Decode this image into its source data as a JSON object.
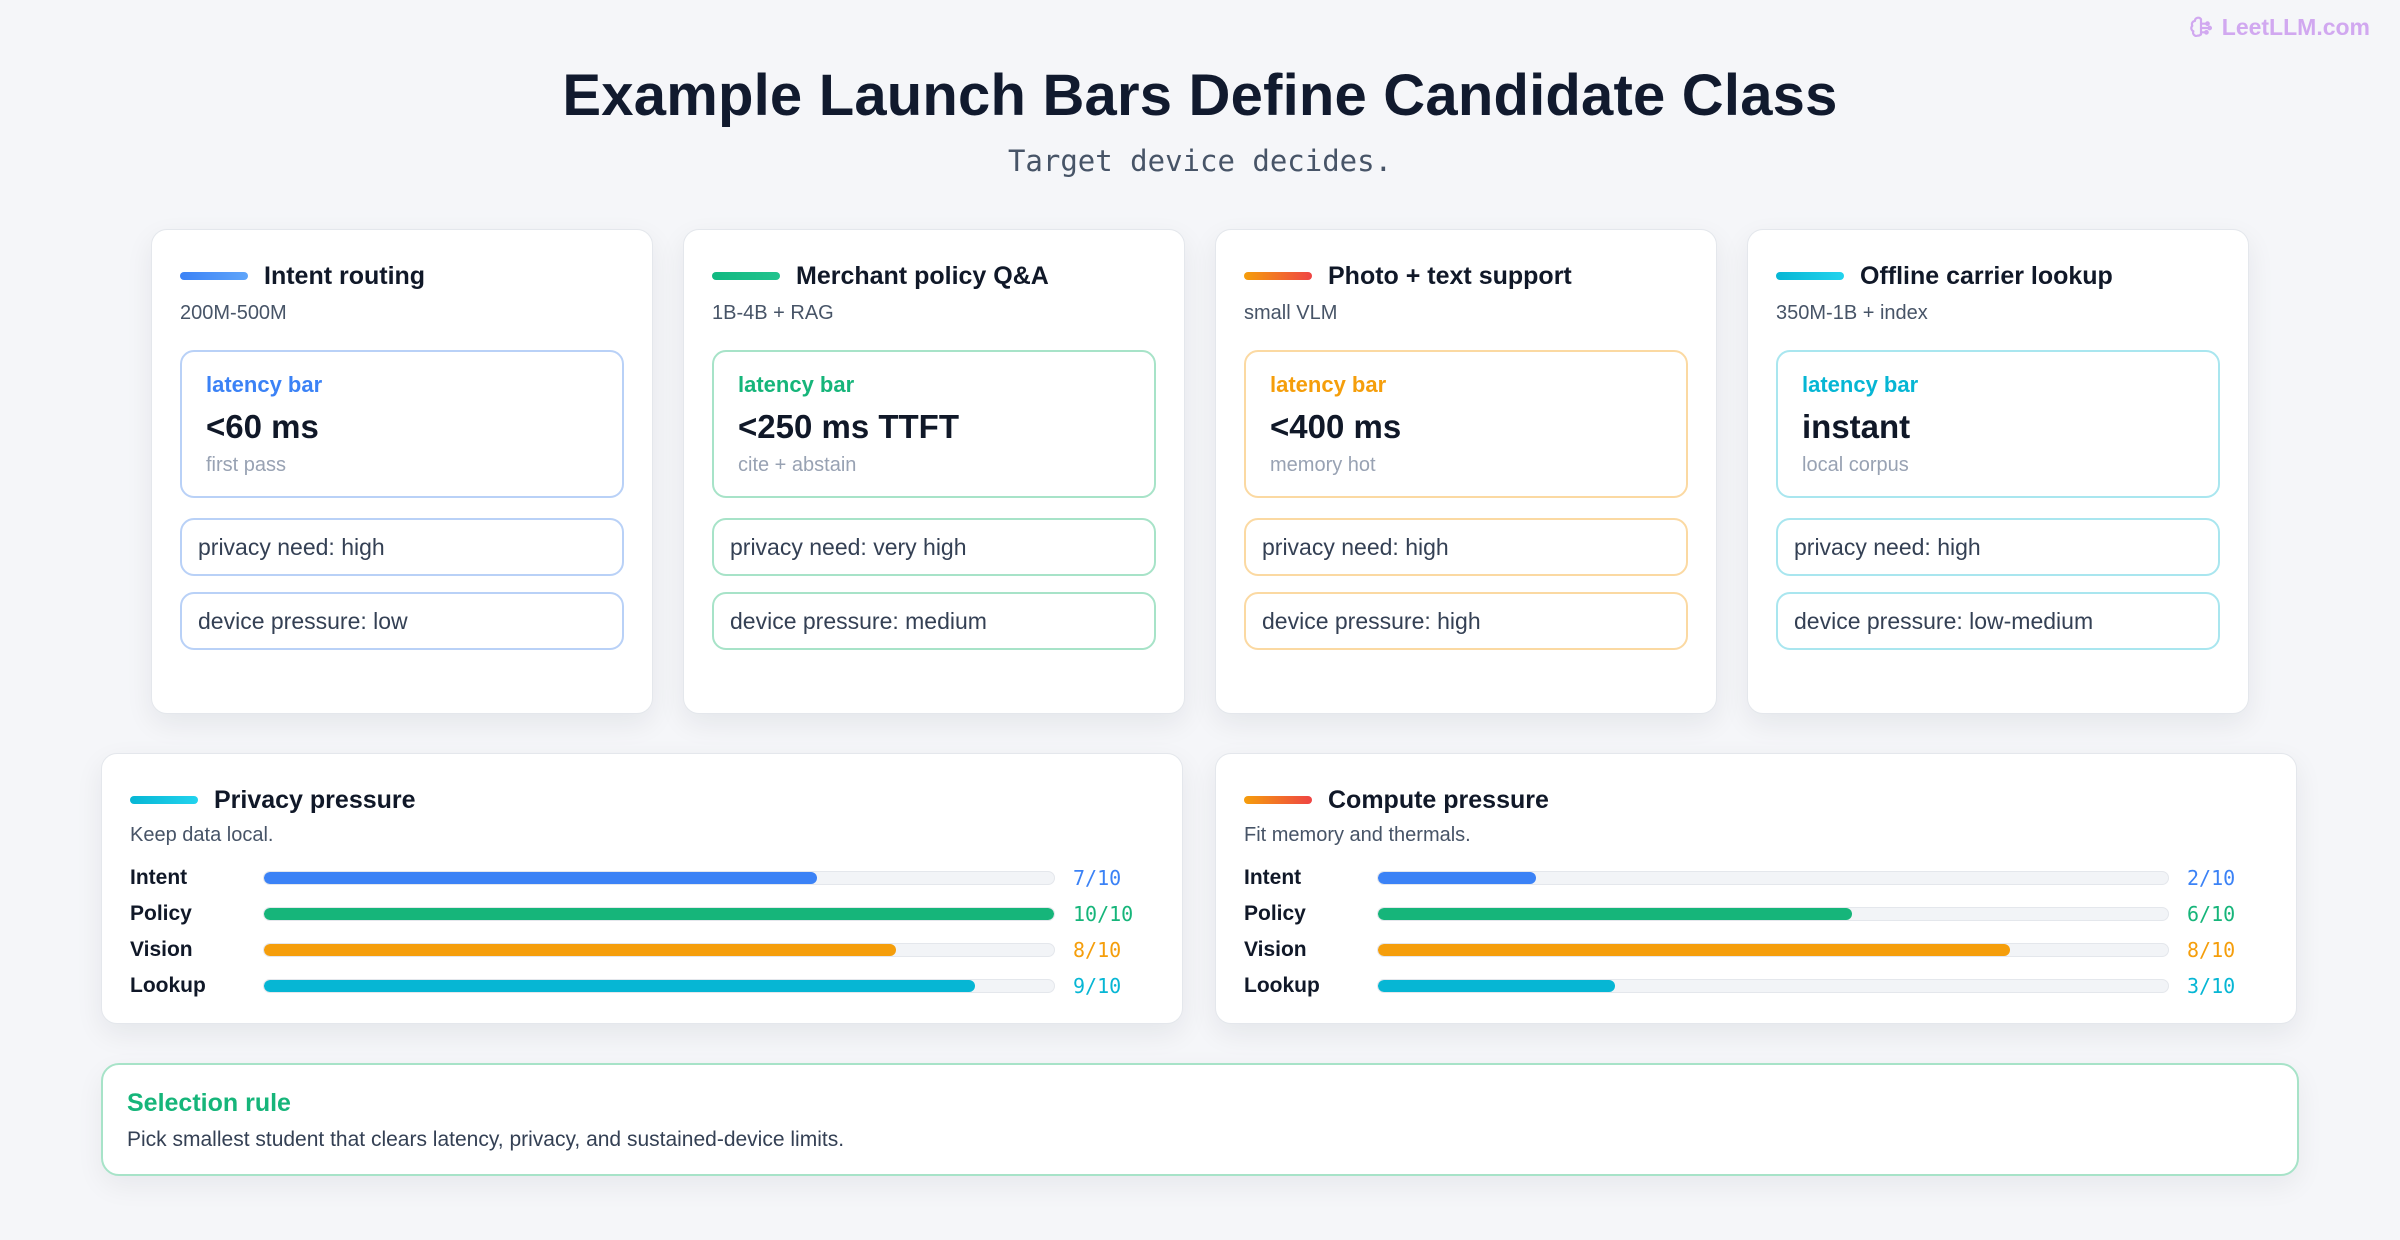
{
  "brand": "LeetLLM.com",
  "title": "Example Launch Bars Define Candidate Class",
  "subtitle": "Target device decides.",
  "colors": {
    "blue": "#3b82f6",
    "green": "#16b57a",
    "orange": "#f59e0b",
    "cyan": "#06b6d4",
    "title": "#111a2e",
    "background": "#f5f6f9"
  },
  "scenarios": [
    {
      "title": "Intent routing",
      "size": "200M-500M",
      "latency_label": "latency bar",
      "latency_value": "<60 ms",
      "latency_note": "first pass",
      "privacy": "privacy need: high",
      "device": "device pressure: low"
    },
    {
      "title": "Merchant policy Q&A",
      "size": "1B-4B + RAG",
      "latency_label": "latency bar",
      "latency_value": "<250 ms TTFT",
      "latency_note": "cite + abstain",
      "privacy": "privacy need: very high",
      "device": "device pressure: medium"
    },
    {
      "title": "Photo + text support",
      "size": "small VLM",
      "latency_label": "latency bar",
      "latency_value": "<400 ms",
      "latency_note": "memory hot",
      "privacy": "privacy need: high",
      "device": "device pressure: high"
    },
    {
      "title": "Offline carrier lookup",
      "size": "350M-1B + index",
      "latency_label": "latency bar",
      "latency_value": "instant",
      "latency_note": "local corpus",
      "privacy": "privacy need: high",
      "device": "device pressure: low-medium"
    }
  ],
  "pressure_panels": [
    {
      "title": "Privacy pressure",
      "subtitle": "Keep data local.",
      "rows": [
        {
          "label": "Intent",
          "value": 7,
          "max": 10,
          "text": "7/10"
        },
        {
          "label": "Policy",
          "value": 10,
          "max": 10,
          "text": "10/10"
        },
        {
          "label": "Vision",
          "value": 8,
          "max": 10,
          "text": "8/10"
        },
        {
          "label": "Lookup",
          "value": 9,
          "max": 10,
          "text": "9/10"
        }
      ]
    },
    {
      "title": "Compute pressure",
      "subtitle": "Fit memory and thermals.",
      "rows": [
        {
          "label": "Intent",
          "value": 2,
          "max": 10,
          "text": "2/10"
        },
        {
          "label": "Policy",
          "value": 6,
          "max": 10,
          "text": "6/10"
        },
        {
          "label": "Vision",
          "value": 8,
          "max": 10,
          "text": "8/10"
        },
        {
          "label": "Lookup",
          "value": 3,
          "max": 10,
          "text": "3/10"
        }
      ]
    }
  ],
  "rule": {
    "title": "Selection rule",
    "text": "Pick smallest student that clears latency, privacy, and sustained-device limits."
  }
}
